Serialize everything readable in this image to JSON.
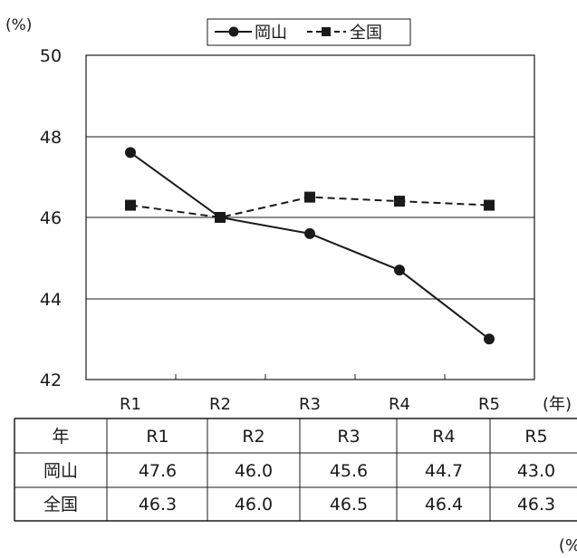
{
  "chart_data": {
    "type": "line",
    "categories": [
      "R1",
      "R2",
      "R3",
      "R4",
      "R5"
    ],
    "series": [
      {
        "name": "岡山",
        "values": [
          47.6,
          46.0,
          45.6,
          44.7,
          43.0
        ],
        "line_style": "solid",
        "marker": "circle",
        "color": "#1a1a1a"
      },
      {
        "name": "全国",
        "values": [
          46.3,
          46.0,
          46.5,
          46.4,
          46.3
        ],
        "line_style": "dashed",
        "marker": "square",
        "color": "#1a1a1a"
      }
    ],
    "y_unit_label": "(%)",
    "x_unit_label": "(年)",
    "ylim": [
      42,
      50
    ],
    "yticks": [
      "42",
      "44",
      "46",
      "48",
      "50"
    ],
    "grid": true,
    "legend": "top-center"
  },
  "table": {
    "header_label": "年",
    "rows": [
      {
        "label": "岡山",
        "values": [
          "47.6",
          "46.0",
          "45.6",
          "44.7",
          "43.0"
        ]
      },
      {
        "label": "全国",
        "values": [
          "46.3",
          "46.0",
          "46.5",
          "46.4",
          "46.3"
        ]
      }
    ],
    "unit_label": "(%"
  }
}
